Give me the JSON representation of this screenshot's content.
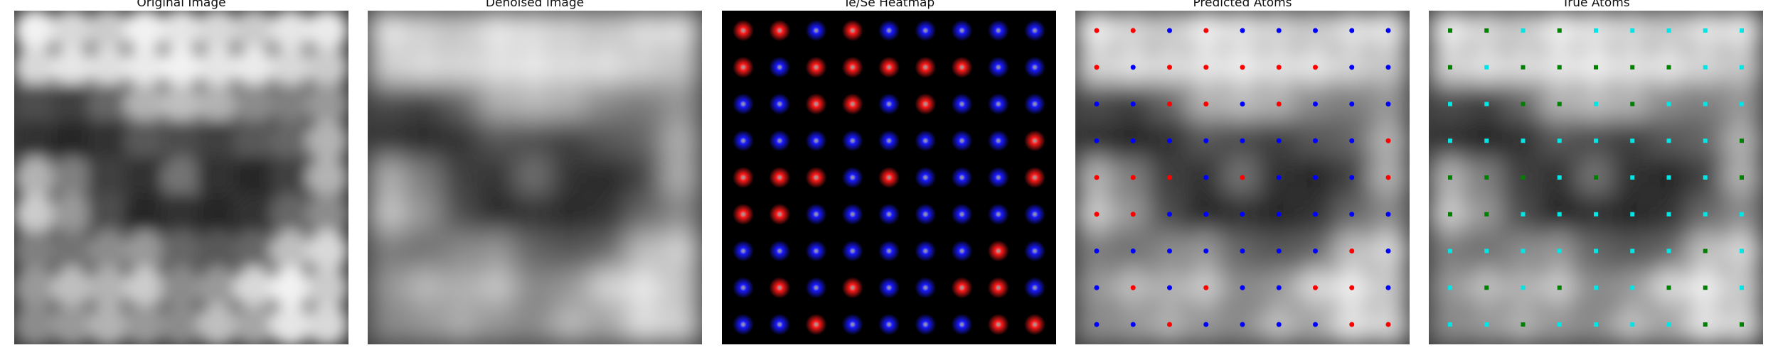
{
  "figure": {
    "panels": [
      {
        "id": "original",
        "title": "Original Image",
        "kind": "grayscale",
        "blur": 10
      },
      {
        "id": "denoised",
        "title": "Denoised Image",
        "kind": "grayscale",
        "blur": 18
      },
      {
        "id": "heatmap",
        "title": "Te/Se Heatmap",
        "kind": "heatmap"
      },
      {
        "id": "predicted",
        "title": "Predicted Atoms",
        "kind": "overlay",
        "dot_shape": "circle"
      },
      {
        "id": "true",
        "title": "True Atoms",
        "kind": "overlay",
        "dot_shape": "square"
      }
    ],
    "colors": {
      "te_heat": "#ff1a1a",
      "se_heat": "#1a1aff",
      "pred_te": "#ff0000",
      "pred_se": "#0000ff",
      "true_te": "#008000",
      "true_se": "#00e5e5",
      "heat_background": "#000000"
    },
    "grid": {
      "rows": 9,
      "cols": 9,
      "atom_types": [
        [
          "Te",
          "Te",
          "Se",
          "Te",
          "Se",
          "Se",
          "Se",
          "Se",
          "Se"
        ],
        [
          "Te",
          "Se",
          "Te",
          "Te",
          "Te",
          "Te",
          "Te",
          "Se",
          "Se"
        ],
        [
          "Se",
          "Se",
          "Te",
          "Te",
          "Se",
          "Te",
          "Se",
          "Se",
          "Se"
        ],
        [
          "Se",
          "Se",
          "Se",
          "Se",
          "Se",
          "Se",
          "Se",
          "Se",
          "Te"
        ],
        [
          "Te",
          "Te",
          "Te",
          "Se",
          "Te",
          "Se",
          "Se",
          "Se",
          "Te"
        ],
        [
          "Te",
          "Te",
          "Se",
          "Se",
          "Se",
          "Se",
          "Se",
          "Se",
          "Se"
        ],
        [
          "Se",
          "Se",
          "Se",
          "Se",
          "Se",
          "Se",
          "Se",
          "Te",
          "Se"
        ],
        [
          "Se",
          "Te",
          "Se",
          "Te",
          "Se",
          "Se",
          "Te",
          "Te",
          "Se"
        ],
        [
          "Se",
          "Se",
          "Te",
          "Se",
          "Se",
          "Se",
          "Se",
          "Te",
          "Te"
        ]
      ],
      "brightness": [
        [
          0.95,
          0.85,
          0.8,
          0.95,
          0.9,
          0.85,
          0.8,
          0.9,
          0.92
        ],
        [
          0.85,
          0.9,
          0.88,
          0.92,
          0.95,
          0.9,
          0.92,
          0.85,
          0.8
        ],
        [
          0.3,
          0.25,
          0.4,
          0.7,
          0.75,
          0.7,
          0.55,
          0.5,
          0.6
        ],
        [
          0.2,
          0.15,
          0.2,
          0.35,
          0.3,
          0.25,
          0.35,
          0.4,
          0.7
        ],
        [
          0.7,
          0.5,
          0.25,
          0.2,
          0.45,
          0.2,
          0.15,
          0.25,
          0.7
        ],
        [
          0.8,
          0.6,
          0.3,
          0.15,
          0.2,
          0.15,
          0.2,
          0.4,
          0.55
        ],
        [
          0.5,
          0.45,
          0.55,
          0.6,
          0.4,
          0.35,
          0.4,
          0.75,
          0.85
        ],
        [
          0.6,
          0.75,
          0.7,
          0.8,
          0.55,
          0.6,
          0.85,
          0.95,
          0.8
        ],
        [
          0.55,
          0.6,
          0.7,
          0.6,
          0.55,
          0.75,
          0.65,
          0.9,
          0.85
        ]
      ]
    }
  }
}
